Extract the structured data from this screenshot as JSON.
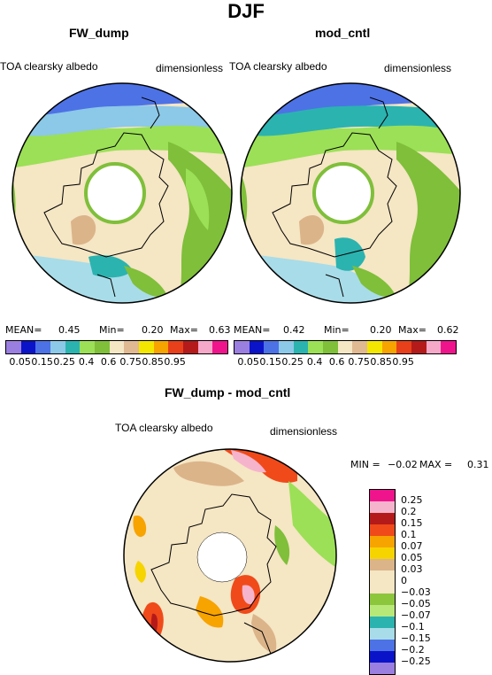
{
  "title": "DJF",
  "panels": [
    {
      "name": "FW_dump",
      "left_label": "TOA clearsky albedo",
      "right_label": "dimensionless",
      "stats": {
        "mean_label": "MEAN=",
        "mean": "0.45",
        "min_label": "Min=",
        "min": "0.20",
        "max_label": "Max=",
        "max": "0.63"
      }
    },
    {
      "name": "mod_cntl",
      "left_label": "TOA clearsky albedo",
      "right_label": "dimensionless",
      "stats": {
        "mean_label": "MEAN=",
        "mean": "0.42",
        "min_label": "Min=",
        "min": "0.20",
        "max_label": "Max=",
        "max": "0.62"
      }
    }
  ],
  "top_colorbar": {
    "colors": [
      "#9a7fe0",
      "#0b13c9",
      "#4d72e6",
      "#8cc8e8",
      "#2bb3b0",
      "#9be056",
      "#7fbf3a",
      "#f5e6c4",
      "#e0b992",
      "#f3e600",
      "#f7a300",
      "#e8401a",
      "#b51a1a",
      "#f6a8c8",
      "#f0148c"
    ],
    "ticks": [
      "0.05",
      "0.15",
      "0.25",
      "0.4",
      "0.6",
      "0.75",
      "0.85",
      "0.95"
    ]
  },
  "diff": {
    "name": "FW_dump - mod_cntl",
    "left_label": "TOA clearsky albedo",
    "right_label": "dimensionless",
    "min_label": "MIN =",
    "min": "−0.02",
    "max_label": "MAX =",
    "max": "0.31",
    "colorbar": [
      {
        "color": "#f0148c",
        "label": "0.25"
      },
      {
        "color": "#f6b4cc",
        "label": "0.2"
      },
      {
        "color": "#b51a1a",
        "label": "0.15"
      },
      {
        "color": "#f04a1a",
        "label": "0.1"
      },
      {
        "color": "#f7a300",
        "label": "0.07"
      },
      {
        "color": "#f6d400",
        "label": "0.05"
      },
      {
        "color": "#dcb48a",
        "label": "0.03"
      },
      {
        "color": "#f5e6c4",
        "label": "0"
      },
      {
        "color": "#f5e6c4",
        "label": "−0.03"
      },
      {
        "color": "#8cc63c",
        "label": "−0.05"
      },
      {
        "color": "#b8e878",
        "label": "−0.07"
      },
      {
        "color": "#2bb3b0",
        "label": "−0.1"
      },
      {
        "color": "#a8dce8",
        "label": "−0.15"
      },
      {
        "color": "#4d72e6",
        "label": "−0.2"
      },
      {
        "color": "#0b13c9",
        "label": "−0.25"
      },
      {
        "color": "#9a7fe0",
        "label": ""
      }
    ]
  }
}
